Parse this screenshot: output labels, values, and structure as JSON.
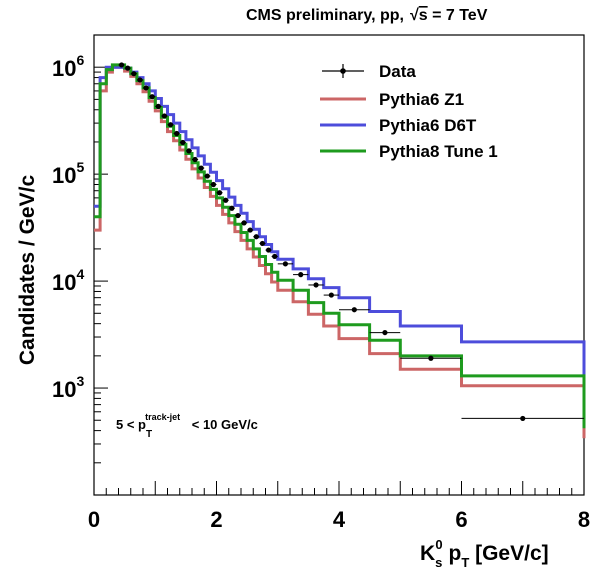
{
  "header": {
    "collab": "CMS preliminary, pp,",
    "energy_prefix": "s",
    "energy_suffix": " = 7 TeV"
  },
  "axes": {
    "ylabel": "Candidates / GeV/c",
    "xlabel_base": "K",
    "xlabel_sub": "s",
    "xlabel_sup": "0",
    "xlabel_var": " p",
    "xlabel_var_sub": "T",
    "xlabel_unit": " [GeV/c]",
    "xticks": [
      "0",
      "2",
      "4",
      "6",
      "8"
    ],
    "yticks": [
      {
        "base": "10",
        "exp": "3",
        "value": 1000
      },
      {
        "base": "10",
        "exp": "4",
        "value": 10000
      },
      {
        "base": "10",
        "exp": "5",
        "value": 100000
      },
      {
        "base": "10",
        "exp": "6",
        "value": 1000000
      }
    ]
  },
  "annotation": {
    "left": "5 < p",
    "sub": "T",
    "sup": "track-jet",
    "right": " < 10 GeV/c"
  },
  "colors": {
    "data": "#000000",
    "z1": "#cc6666",
    "d6t": "#4d4ddb",
    "tune1": "#1e9b1e"
  },
  "chart_data": {
    "type": "line",
    "x_scale": "linear",
    "y_scale": "log",
    "xlim": [
      0,
      8
    ],
    "ylim": [
      100,
      2000000
    ],
    "xlabel": "K_s^0 p_T [GeV/c]",
    "ylabel": "Candidates / GeV/c",
    "title": "CMS preliminary, pp, √s = 7 TeV",
    "legend_position": "top-right",
    "bin_edges": [
      0,
      0.1,
      0.2,
      0.3,
      0.4,
      0.5,
      0.6,
      0.7,
      0.8,
      0.9,
      1.0,
      1.1,
      1.2,
      1.3,
      1.4,
      1.5,
      1.6,
      1.7,
      1.8,
      1.9,
      2.0,
      2.1,
      2.2,
      2.3,
      2.4,
      2.5,
      2.6,
      2.7,
      2.8,
      2.9,
      3.0,
      3.25,
      3.5,
      3.75,
      4.0,
      4.5,
      5.0,
      6.0,
      8.0
    ],
    "series": [
      {
        "name": "Data",
        "style": "points",
        "x": [
          0.45,
          0.55,
          0.65,
          0.75,
          0.85,
          0.95,
          1.05,
          1.15,
          1.25,
          1.35,
          1.45,
          1.55,
          1.65,
          1.75,
          1.85,
          1.95,
          2.05,
          2.15,
          2.25,
          2.35,
          2.45,
          2.55,
          2.65,
          2.75,
          2.85,
          2.95,
          3.125,
          3.375,
          3.625,
          3.875,
          4.25,
          4.75,
          5.5,
          7.0
        ],
        "values": [
          1050000,
          980000,
          870000,
          760000,
          640000,
          530000,
          430000,
          350000,
          290000,
          240000,
          198000,
          165000,
          137000,
          114000,
          96000,
          80000,
          67000,
          57000,
          48000,
          41000,
          35000,
          30000,
          26000,
          22500,
          19500,
          17000,
          14500,
          11500,
          9200,
          7400,
          5400,
          3300,
          1900,
          520
        ]
      },
      {
        "name": "Pythia6 Z1",
        "style": "step",
        "values": [
          30000,
          600000,
          900000,
          1000000,
          1000000,
          920000,
          820000,
          700000,
          590000,
          480000,
          390000,
          310000,
          250000,
          205000,
          168000,
          138000,
          112000,
          92000,
          75000,
          62000,
          51000,
          42000,
          35000,
          29000,
          24000,
          20000,
          16800,
          14000,
          11700,
          9800,
          8200,
          6400,
          4900,
          3800,
          2900,
          2100,
          1500,
          1050,
          340
        ]
      },
      {
        "name": "Pythia6 D6T",
        "style": "step",
        "values": [
          50000,
          800000,
          1000000,
          1000000,
          1000000,
          980000,
          900000,
          800000,
          700000,
          600000,
          510000,
          430000,
          360000,
          300000,
          250000,
          210000,
          176000,
          148000,
          124000,
          104000,
          87000,
          73000,
          61000,
          51000,
          43000,
          36000,
          30500,
          26000,
          22000,
          18800,
          16000,
          13000,
          10500,
          8700,
          7000,
          5200,
          3800,
          2700,
          510
        ]
      },
      {
        "name": "Pythia8 Tune 1",
        "style": "step",
        "values": [
          40000,
          700000,
          950000,
          1050000,
          1050000,
          980000,
          870000,
          750000,
          640000,
          520000,
          420000,
          340000,
          280000,
          230000,
          190000,
          156000,
          128000,
          105000,
          86000,
          72000,
          60000,
          49000,
          41000,
          34000,
          28500,
          24000,
          20000,
          17000,
          14300,
          12100,
          10200,
          8200,
          6300,
          5000,
          3900,
          2800,
          2000,
          1300,
          420
        ]
      }
    ]
  }
}
